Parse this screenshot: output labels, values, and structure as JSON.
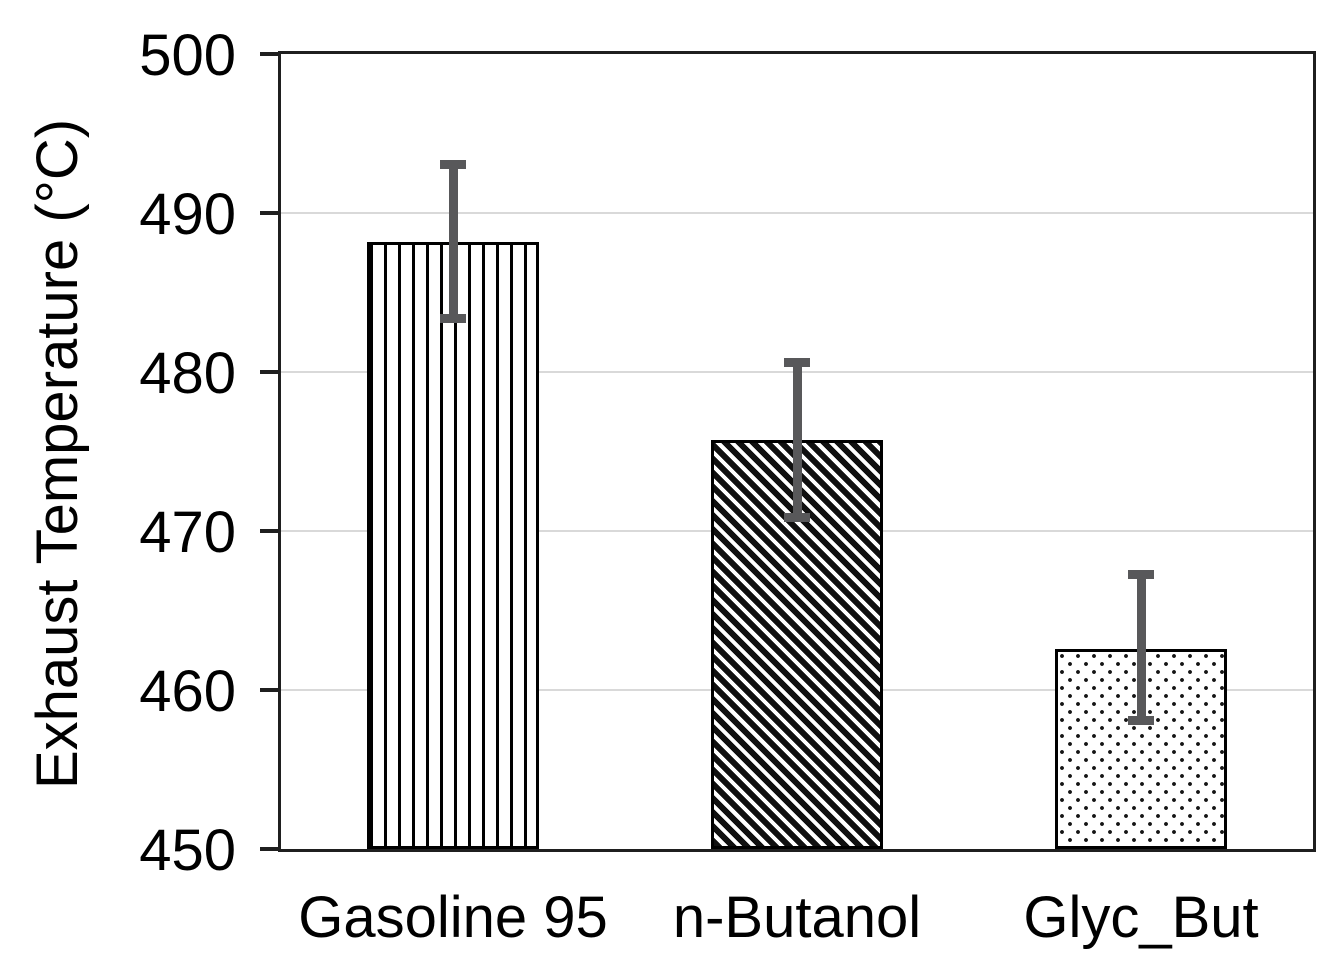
{
  "chart_data": {
    "type": "bar",
    "title": "",
    "xlabel": "",
    "ylabel": "Exhaust Temperature (°C)",
    "ylim": [
      450,
      500
    ],
    "yticks": [
      450,
      460,
      470,
      480,
      490,
      500
    ],
    "grid": "horizontal-light-gray",
    "legend": "none",
    "categories": [
      "Gasoline 95",
      "n-Butanol",
      "Glyc_But"
    ],
    "series": [
      {
        "name": "Exhaust Temperature",
        "values": [
          488.2,
          475.7,
          462.6
        ],
        "error_low": [
          483.4,
          470.9,
          458.1
        ],
        "error_high": [
          493.1,
          480.6,
          467.3
        ]
      }
    ],
    "bar_patterns": [
      "vertical-stripes",
      "diagonal-stripes",
      "dots"
    ],
    "colors": {
      "bar_outline": "#000000",
      "bar_fill_background": "#ffffff",
      "pattern_ink": "#101010",
      "error_bar": "#58585a",
      "gridline": "#d9d9d9",
      "axis_border": "#1f1f1f",
      "text": "#000000",
      "background": "#ffffff"
    }
  }
}
